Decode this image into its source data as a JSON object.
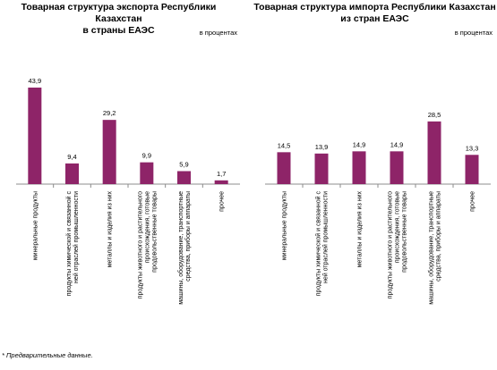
{
  "chart_data": [
    {
      "type": "bar",
      "title": "Товарная структура экспорта Республики Казахстан\nв страны ЕАЭС",
      "units": "в процентах",
      "categories": [
        "минеральные продукты",
        "продукты химической и связанной с ней отраслей промышленности",
        "металлы и изделия из них",
        "продукты животного и растительного происхождения, готовые продовольственные товары",
        "машины, оборудование, транспортные средства, приборы и аппараты",
        "прочее"
      ],
      "values": [
        43.9,
        9.4,
        29.2,
        9.9,
        5.9,
        1.7
      ],
      "value_labels": [
        "43,9",
        "9,4",
        "29,2",
        "9,9",
        "5,9",
        "1,7"
      ],
      "ylim": [
        0,
        50
      ],
      "grid": false,
      "bar_color": "#8e2468"
    },
    {
      "type": "bar",
      "title": "Товарная структура импорта Республики Казахстан\nиз стран ЕАЭС",
      "units": "в процентах",
      "categories": [
        "минеральные продукты",
        "продукты химической и связанной с ней отраслей промышленности",
        "металлы и изделия из них",
        "продукты животного и растительного происхождения, готовые продовольственные товары",
        "машины, оборудование, транспортные средства, приборы и аппараты",
        "прочее"
      ],
      "values": [
        14.5,
        13.9,
        14.9,
        14.9,
        28.5,
        13.3
      ],
      "value_labels": [
        "14,5",
        "13,9",
        "14,9",
        "14,9",
        "28,5",
        "13,3"
      ],
      "ylim": [
        0,
        50
      ],
      "grid": false,
      "bar_color": "#8e2468"
    }
  ],
  "footnote": "* Предварительные данные."
}
